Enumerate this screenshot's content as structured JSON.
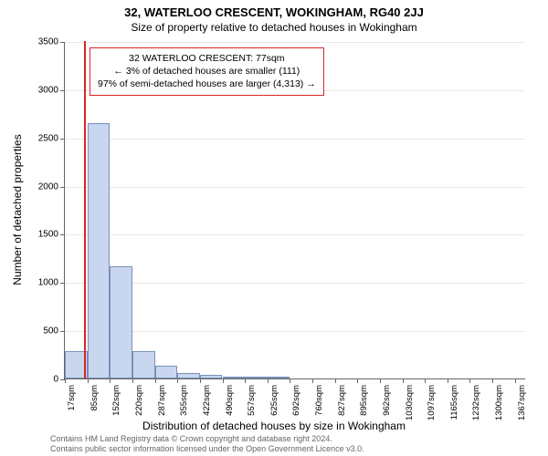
{
  "title_top": "32, WATERLOO CRESCENT, WOKINGHAM, RG40 2JJ",
  "title_sub": "Size of property relative to detached houses in Wokingham",
  "y_axis_label": "Number of detached properties",
  "x_axis_label": "Distribution of detached houses by size in Wokingham",
  "chart": {
    "type": "histogram",
    "ylim": [
      0,
      3500
    ],
    "ytick_step": 500,
    "yticks": [
      0,
      500,
      1000,
      1500,
      2000,
      2500,
      3000,
      3500
    ],
    "x_min": 17,
    "x_max": 1401,
    "x_ticks": [
      17,
      85,
      152,
      220,
      287,
      355,
      422,
      490,
      557,
      625,
      692,
      760,
      827,
      895,
      962,
      1030,
      1097,
      1165,
      1232,
      1300,
      1367
    ],
    "x_tick_suffix": "sqm",
    "bar_fill": "#c9d6ef",
    "bar_stroke": "#7a8fb8",
    "grid_color": "#e8e8e8",
    "axis_color": "#666666",
    "background_color": "#ffffff",
    "bar_bin_width": 67.5,
    "bars": [
      {
        "x_start": 17,
        "value": 280
      },
      {
        "x_start": 85,
        "value": 2650
      },
      {
        "x_start": 152,
        "value": 1160
      },
      {
        "x_start": 220,
        "value": 280
      },
      {
        "x_start": 287,
        "value": 130
      },
      {
        "x_start": 355,
        "value": 60
      },
      {
        "x_start": 422,
        "value": 40
      },
      {
        "x_start": 490,
        "value": 20
      },
      {
        "x_start": 557,
        "value": 10
      },
      {
        "x_start": 625,
        "value": 5
      }
    ],
    "marker": {
      "x": 77,
      "color": "#d92626",
      "width": 2
    }
  },
  "info_box": {
    "border_color": "#d92626",
    "lines": [
      "32 WATERLOO CRESCENT: 77sqm",
      "← 3% of detached houses are smaller (111)",
      "97% of semi-detached houses are larger (4,313) →"
    ]
  },
  "footer": {
    "line1": "Contains HM Land Registry data © Crown copyright and database right 2024.",
    "line2": "Contains public sector information licensed under the Open Government Licence v3.0."
  }
}
